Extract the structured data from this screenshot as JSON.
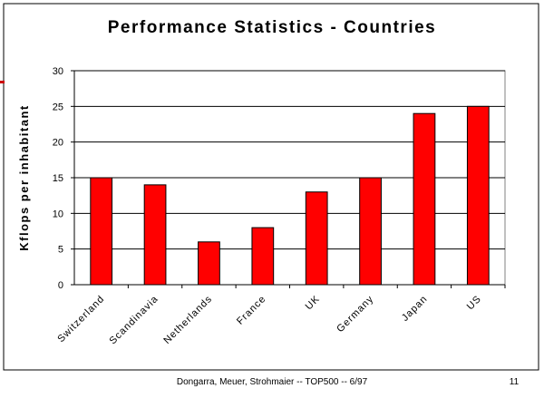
{
  "chart_data": {
    "type": "bar",
    "title": "Performance Statistics - Countries",
    "ylabel": "Kflops per inhabitant",
    "xlabel": "",
    "categories": [
      "Switzerland",
      "Scandinavia",
      "Netherlands",
      "France",
      "UK",
      "Germany",
      "Japan",
      "US"
    ],
    "values": [
      15,
      14,
      6,
      8,
      13,
      15,
      24,
      25
    ],
    "ylim": [
      0,
      30
    ],
    "yticks": [
      0,
      5,
      10,
      15,
      20,
      25,
      30
    ],
    "grid": true,
    "legend": "none",
    "bar_color": "#ff0000"
  },
  "footer": {
    "credit": "Dongarra, Meuer, Strohmaier -- TOP500 -- 6/97",
    "page_number": "11"
  },
  "colors": {
    "frame": "#000000",
    "accent_mark": "#cc0000"
  }
}
